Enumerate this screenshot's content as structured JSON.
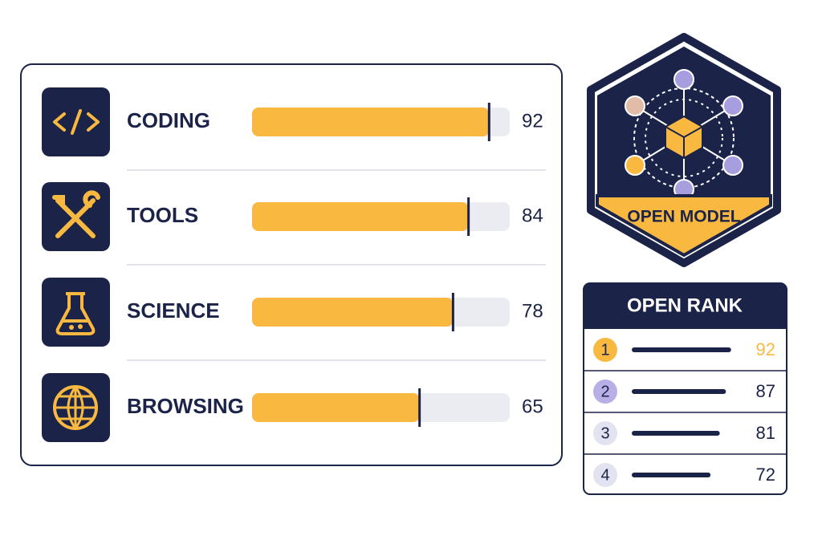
{
  "skills": [
    {
      "label": "CODING",
      "value": 92
    },
    {
      "label": "TOOLS",
      "value": 84
    },
    {
      "label": "SCIENCE",
      "value": 78
    },
    {
      "label": "BROWSING",
      "value": 65
    }
  ],
  "badge": {
    "label": "OPEN MODEL"
  },
  "rank": {
    "title": "OPEN RANK",
    "rows": [
      {
        "rank": 1,
        "score": 92
      },
      {
        "rank": 2,
        "score": 87
      },
      {
        "rank": 3,
        "score": 81
      },
      {
        "rank": 4,
        "score": 72
      }
    ]
  }
}
